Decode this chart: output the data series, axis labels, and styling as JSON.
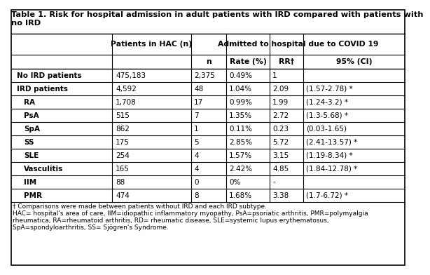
{
  "title_line1": "Table 1. Risk for hospital admission in adult patients with IRD compared with patients with",
  "title_line2": "no IRD",
  "header1_col1": "Patients in HAC (n)",
  "header1_col2": "Admitted to hospital due to COVID 19",
  "header2_cols": [
    "n",
    "Rate (%)",
    "RR†",
    "95% (CI)"
  ],
  "rows": [
    [
      "No IRD patients",
      "475,183",
      "2,375",
      "0.49%",
      "1",
      ""
    ],
    [
      "IRD patients",
      "4,592",
      "48",
      "1.04%",
      "2.09",
      "(1.57-2.78) *"
    ],
    [
      "RA",
      "1,708",
      "17",
      "0.99%",
      "1.99",
      "(1.24-3.2) *"
    ],
    [
      "PsA",
      "515",
      "7",
      "1.35%",
      "2.72",
      "(1.3-5.68) *"
    ],
    [
      "SpA",
      "862",
      "1",
      "0.11%",
      "0.23",
      "(0.03-1.65)"
    ],
    [
      "SS",
      "175",
      "5",
      "2.85%",
      "5.72",
      "(2.41-13.57) *"
    ],
    [
      "SLE",
      "254",
      "4",
      "1.57%",
      "3.15",
      "(1.19-8.34) *"
    ],
    [
      "Vasculitis",
      "165",
      "4",
      "2.42%",
      "4.85",
      "(1.84-12.78) *"
    ],
    [
      "IIM",
      "88",
      "0",
      "0%",
      "-",
      ""
    ],
    [
      "PMR",
      "474",
      "8",
      "1.68%",
      "3.38",
      "(1.7-6.72) *"
    ]
  ],
  "row_bold": [
    true,
    true,
    false,
    false,
    false,
    false,
    false,
    false,
    false,
    false
  ],
  "row_indent": [
    false,
    false,
    true,
    true,
    true,
    true,
    true,
    true,
    true,
    true
  ],
  "footnote_lines": [
    "† Comparisons were made between patients without IRD and each IRD subtype.",
    "HAC= hospital's area of care, IIM=idiopathic inflammatory myopathy, PsA=psoriatic arthritis, PMR=polymyalgia",
    "rheumatica, RA=rheumatoid arthritis, RD= rheumatic disease, SLE=systemic lupus erythematosus,",
    "SpA=spondyloarthritis, SS= Sjögren's Syndrome."
  ],
  "background_color": "#ffffff",
  "border_color": "#000000",
  "font_size": 7.5,
  "title_font_size": 8.2,
  "footnote_font_size": 6.5
}
